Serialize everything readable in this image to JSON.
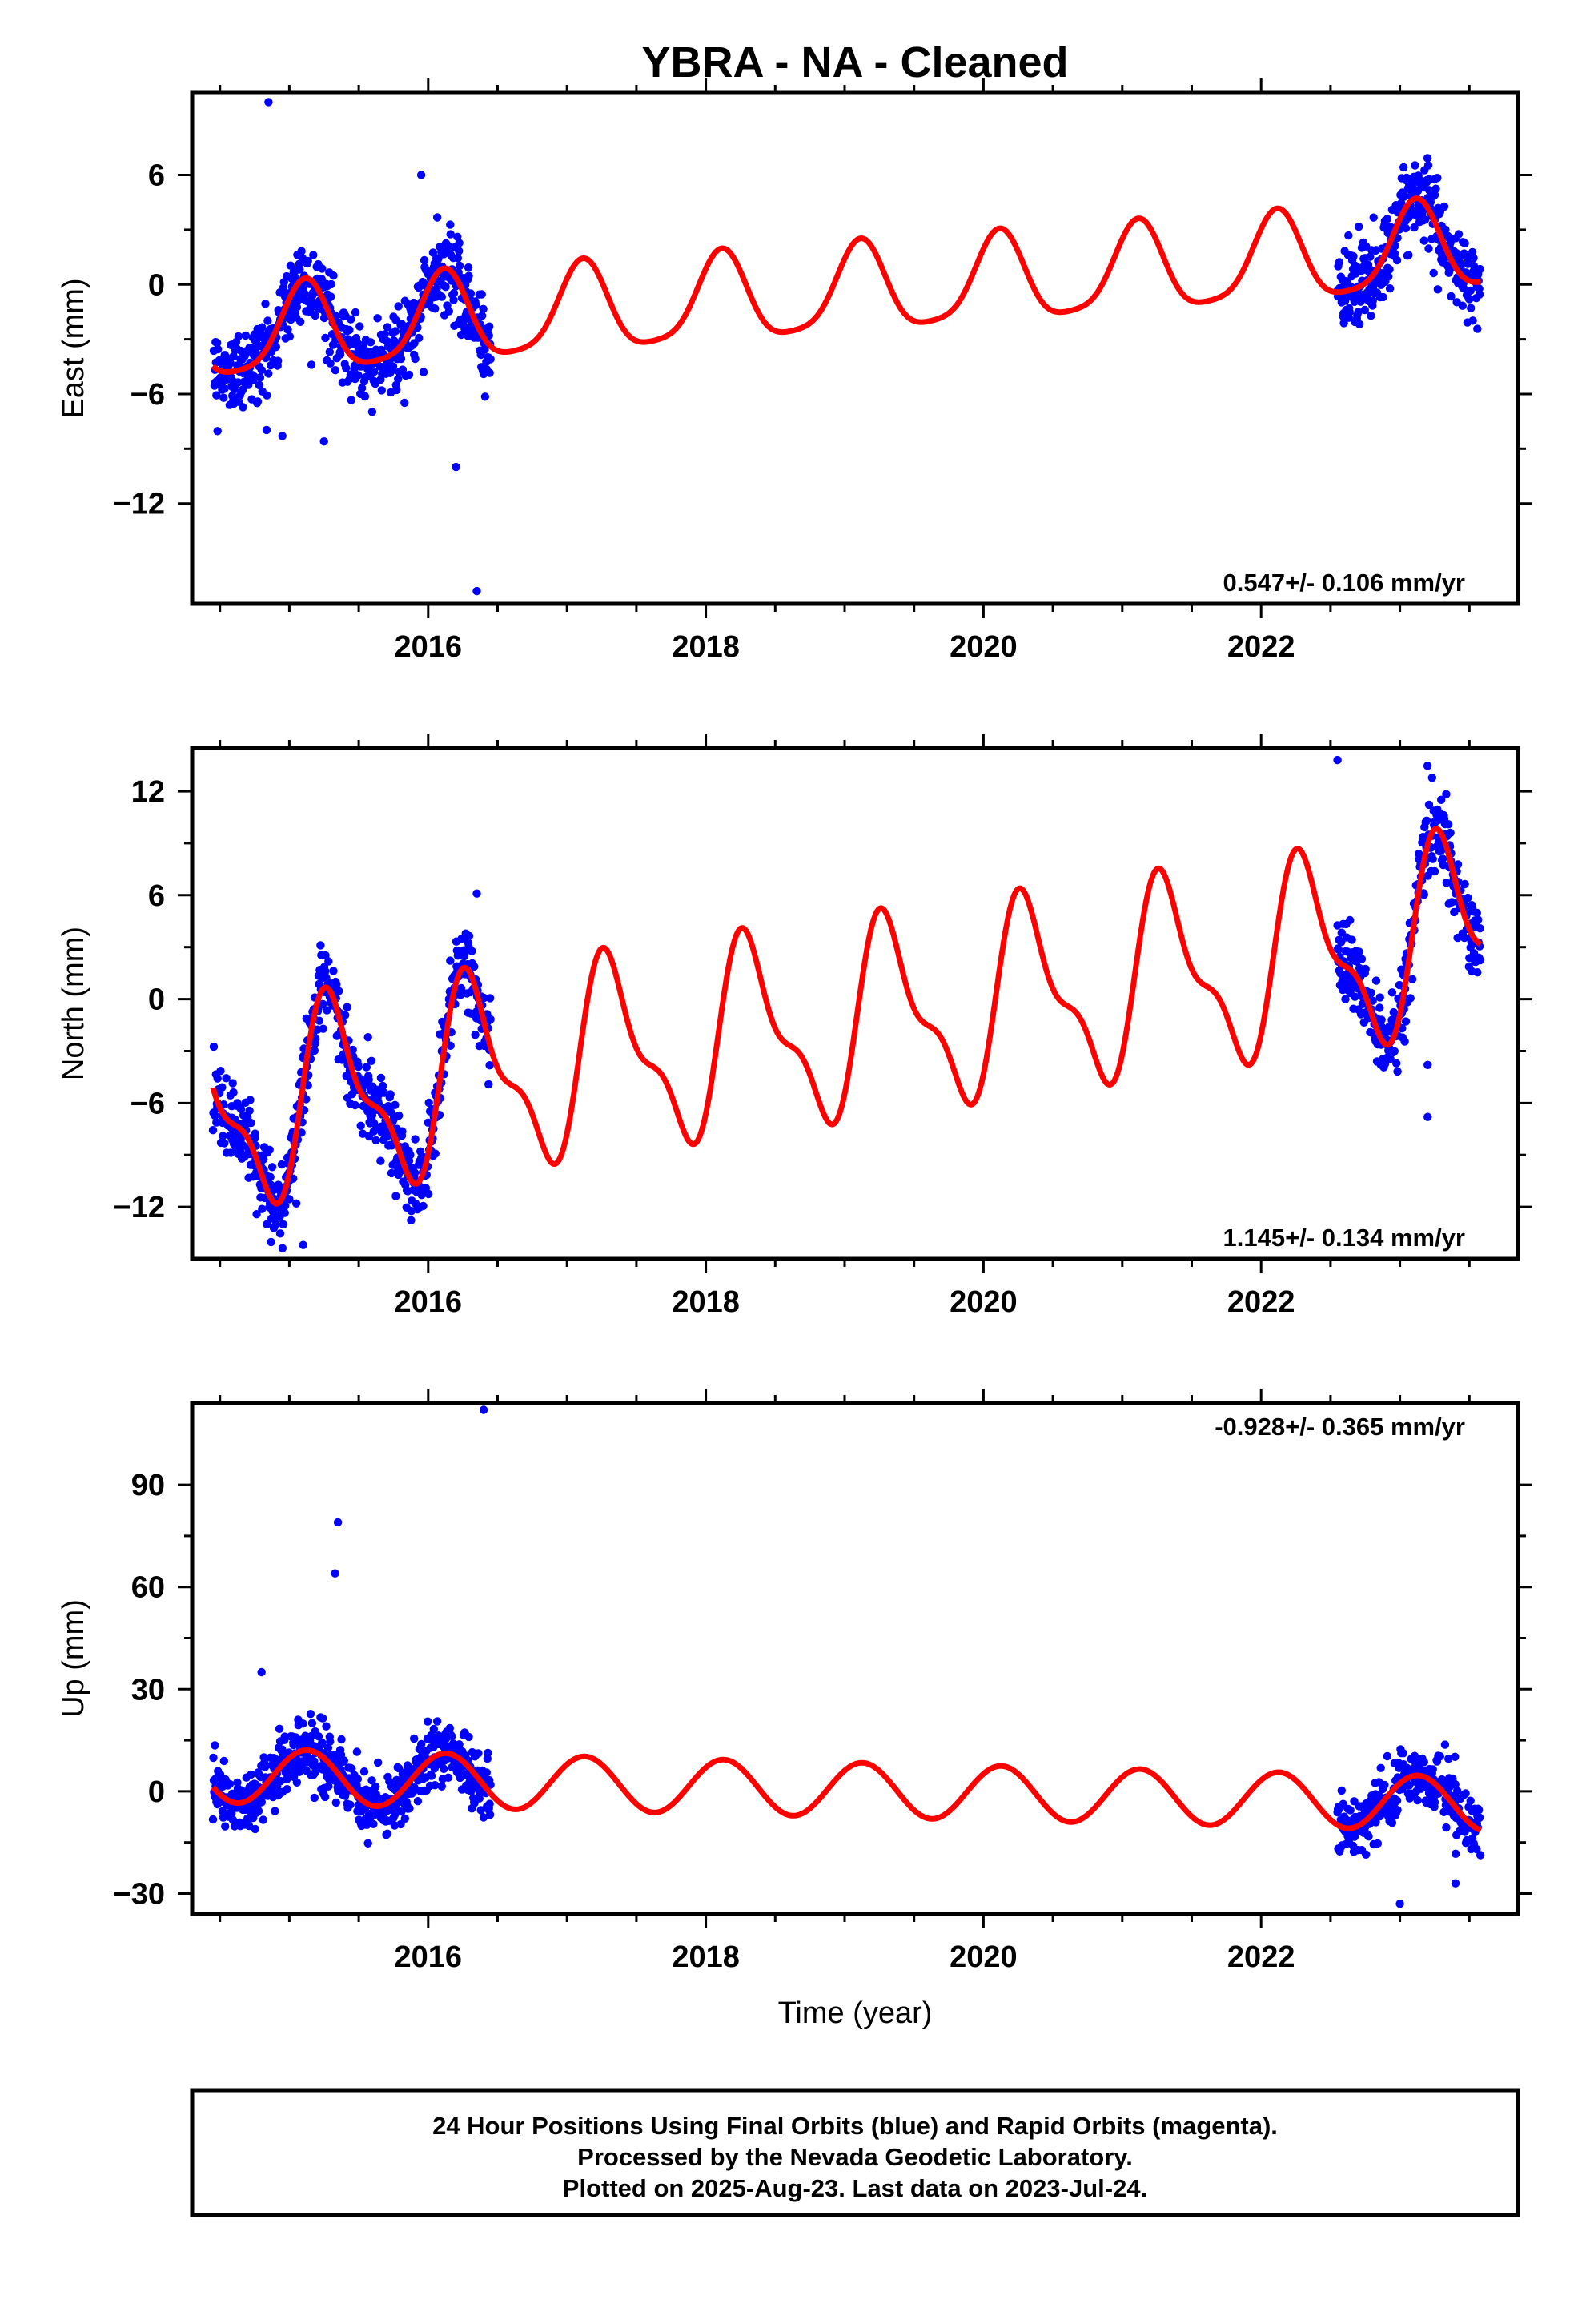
{
  "title": "YBRA  - NA - Cleaned",
  "colors": {
    "final_orbits_points": "#0000ff",
    "model_fit": "#ff0000",
    "frame": "#000000",
    "background": "#ffffff"
  },
  "caption": {
    "lines": [
      "24 Hour Positions Using Final Orbits (blue) and Rapid Orbits (magenta).",
      "Processed by the Nevada Geodetic Laboratory.",
      "Plotted on 2025-Aug-23. Last data on 2023-Jul-24."
    ]
  },
  "chart_data": [
    {
      "type": "scatter",
      "component": "east",
      "ylabel": "East (mm)",
      "xlabel": "",
      "xlim": [
        2014.3,
        2023.85
      ],
      "ylim": [
        -17.5,
        10.5
      ],
      "x_ticks": [
        2016,
        2018,
        2020,
        2022
      ],
      "x_tick_labels": [
        "2016",
        "2018",
        "2020",
        "2022"
      ],
      "y_ticks": [
        6,
        0,
        -6,
        -12
      ],
      "y_tick_labels": [
        "6",
        "0",
        "−12"
      ],
      "y_tick_labels_full": [
        "6",
        "0",
        "−6",
        "−12"
      ],
      "rate_label": "0.547+/- 0.106 mm/yr",
      "rate_position": "bottom-right",
      "model": {
        "a": -0.43,
        "rate": 0.547,
        "amp_annual": 2.4,
        "phase_annual": 0.87,
        "amp_semiannual": 0.5,
        "phase_semiannual": 0.0,
        "t0": 2019.0
      },
      "segments": [
        [
          2014.45,
          2016.45
        ],
        [
          2022.55,
          2023.58
        ]
      ],
      "scatter_sigma": 1.1,
      "outliers": [
        [
          2014.85,
          10.0
        ],
        [
          2015.25,
          -8.6
        ],
        [
          2016.2,
          -10.0
        ],
        [
          2016.35,
          -16.8
        ],
        [
          2014.95,
          -8.3
        ],
        [
          2015.95,
          6.0
        ]
      ]
    },
    {
      "type": "scatter",
      "component": "north",
      "ylabel": "North (mm)",
      "xlabel": "",
      "xlim": [
        2014.3,
        2023.85
      ],
      "ylim": [
        -15.0,
        14.5
      ],
      "x_ticks": [
        2016,
        2018,
        2020,
        2022
      ],
      "x_tick_labels": [
        "2016",
        "2018",
        "2020",
        "2022"
      ],
      "y_ticks": [
        12,
        6,
        0,
        -6,
        -12
      ],
      "y_tick_labels_full": [
        "12",
        "6",
        "0",
        "−6",
        "−12"
      ],
      "rate_label": "1.145+/- 0.134 mm/yr",
      "rate_position": "bottom-right",
      "model": {
        "a": -1.43,
        "rate": 1.145,
        "amp_annual": 5.0,
        "phase_annual": -0.45,
        "amp_semiannual": 2.0,
        "phase_semiannual": -1.2,
        "t0": 2019.0
      },
      "segments": [
        [
          2014.45,
          2016.45
        ],
        [
          2022.55,
          2023.58
        ]
      ],
      "scatter_sigma": 1.2,
      "outliers": [
        [
          2015.1,
          -14.2
        ],
        [
          2015.05,
          -11.8
        ],
        [
          2023.2,
          -6.8
        ],
        [
          2023.2,
          -3.8
        ],
        [
          2022.55,
          13.8
        ],
        [
          2016.35,
          6.1
        ]
      ]
    },
    {
      "type": "scatter",
      "component": "up",
      "ylabel": "Up (mm)",
      "xlabel": "Time (year)",
      "xlim": [
        2014.3,
        2023.85
      ],
      "ylim": [
        -36.0,
        114.0
      ],
      "x_ticks": [
        2016,
        2018,
        2020,
        2022
      ],
      "x_tick_labels": [
        "2016",
        "2018",
        "2020",
        "2022"
      ],
      "y_ticks": [
        90,
        60,
        30,
        0,
        -30
      ],
      "y_tick_labels_full": [
        "90",
        "60",
        "30",
        "0",
        "−30"
      ],
      "rate_label": "-0.928+/- 0.365 mm/yr",
      "rate_position": "top-right",
      "model": {
        "a": 0.5,
        "rate": -0.928,
        "amp_annual": 8.0,
        "phase_annual": 0.77,
        "amp_semiannual": 0.0,
        "phase_semiannual": 0.0,
        "t0": 2019.0
      },
      "segments": [
        [
          2014.45,
          2016.45
        ],
        [
          2022.55,
          2023.58
        ]
      ],
      "scatter_sigma": 4.5,
      "outliers": [
        [
          2016.4,
          112.0
        ],
        [
          2015.35,
          79.0
        ],
        [
          2015.33,
          64.0
        ],
        [
          2014.8,
          35.0
        ],
        [
          2023.0,
          -33.0
        ],
        [
          2023.4,
          -27.0
        ]
      ]
    }
  ]
}
